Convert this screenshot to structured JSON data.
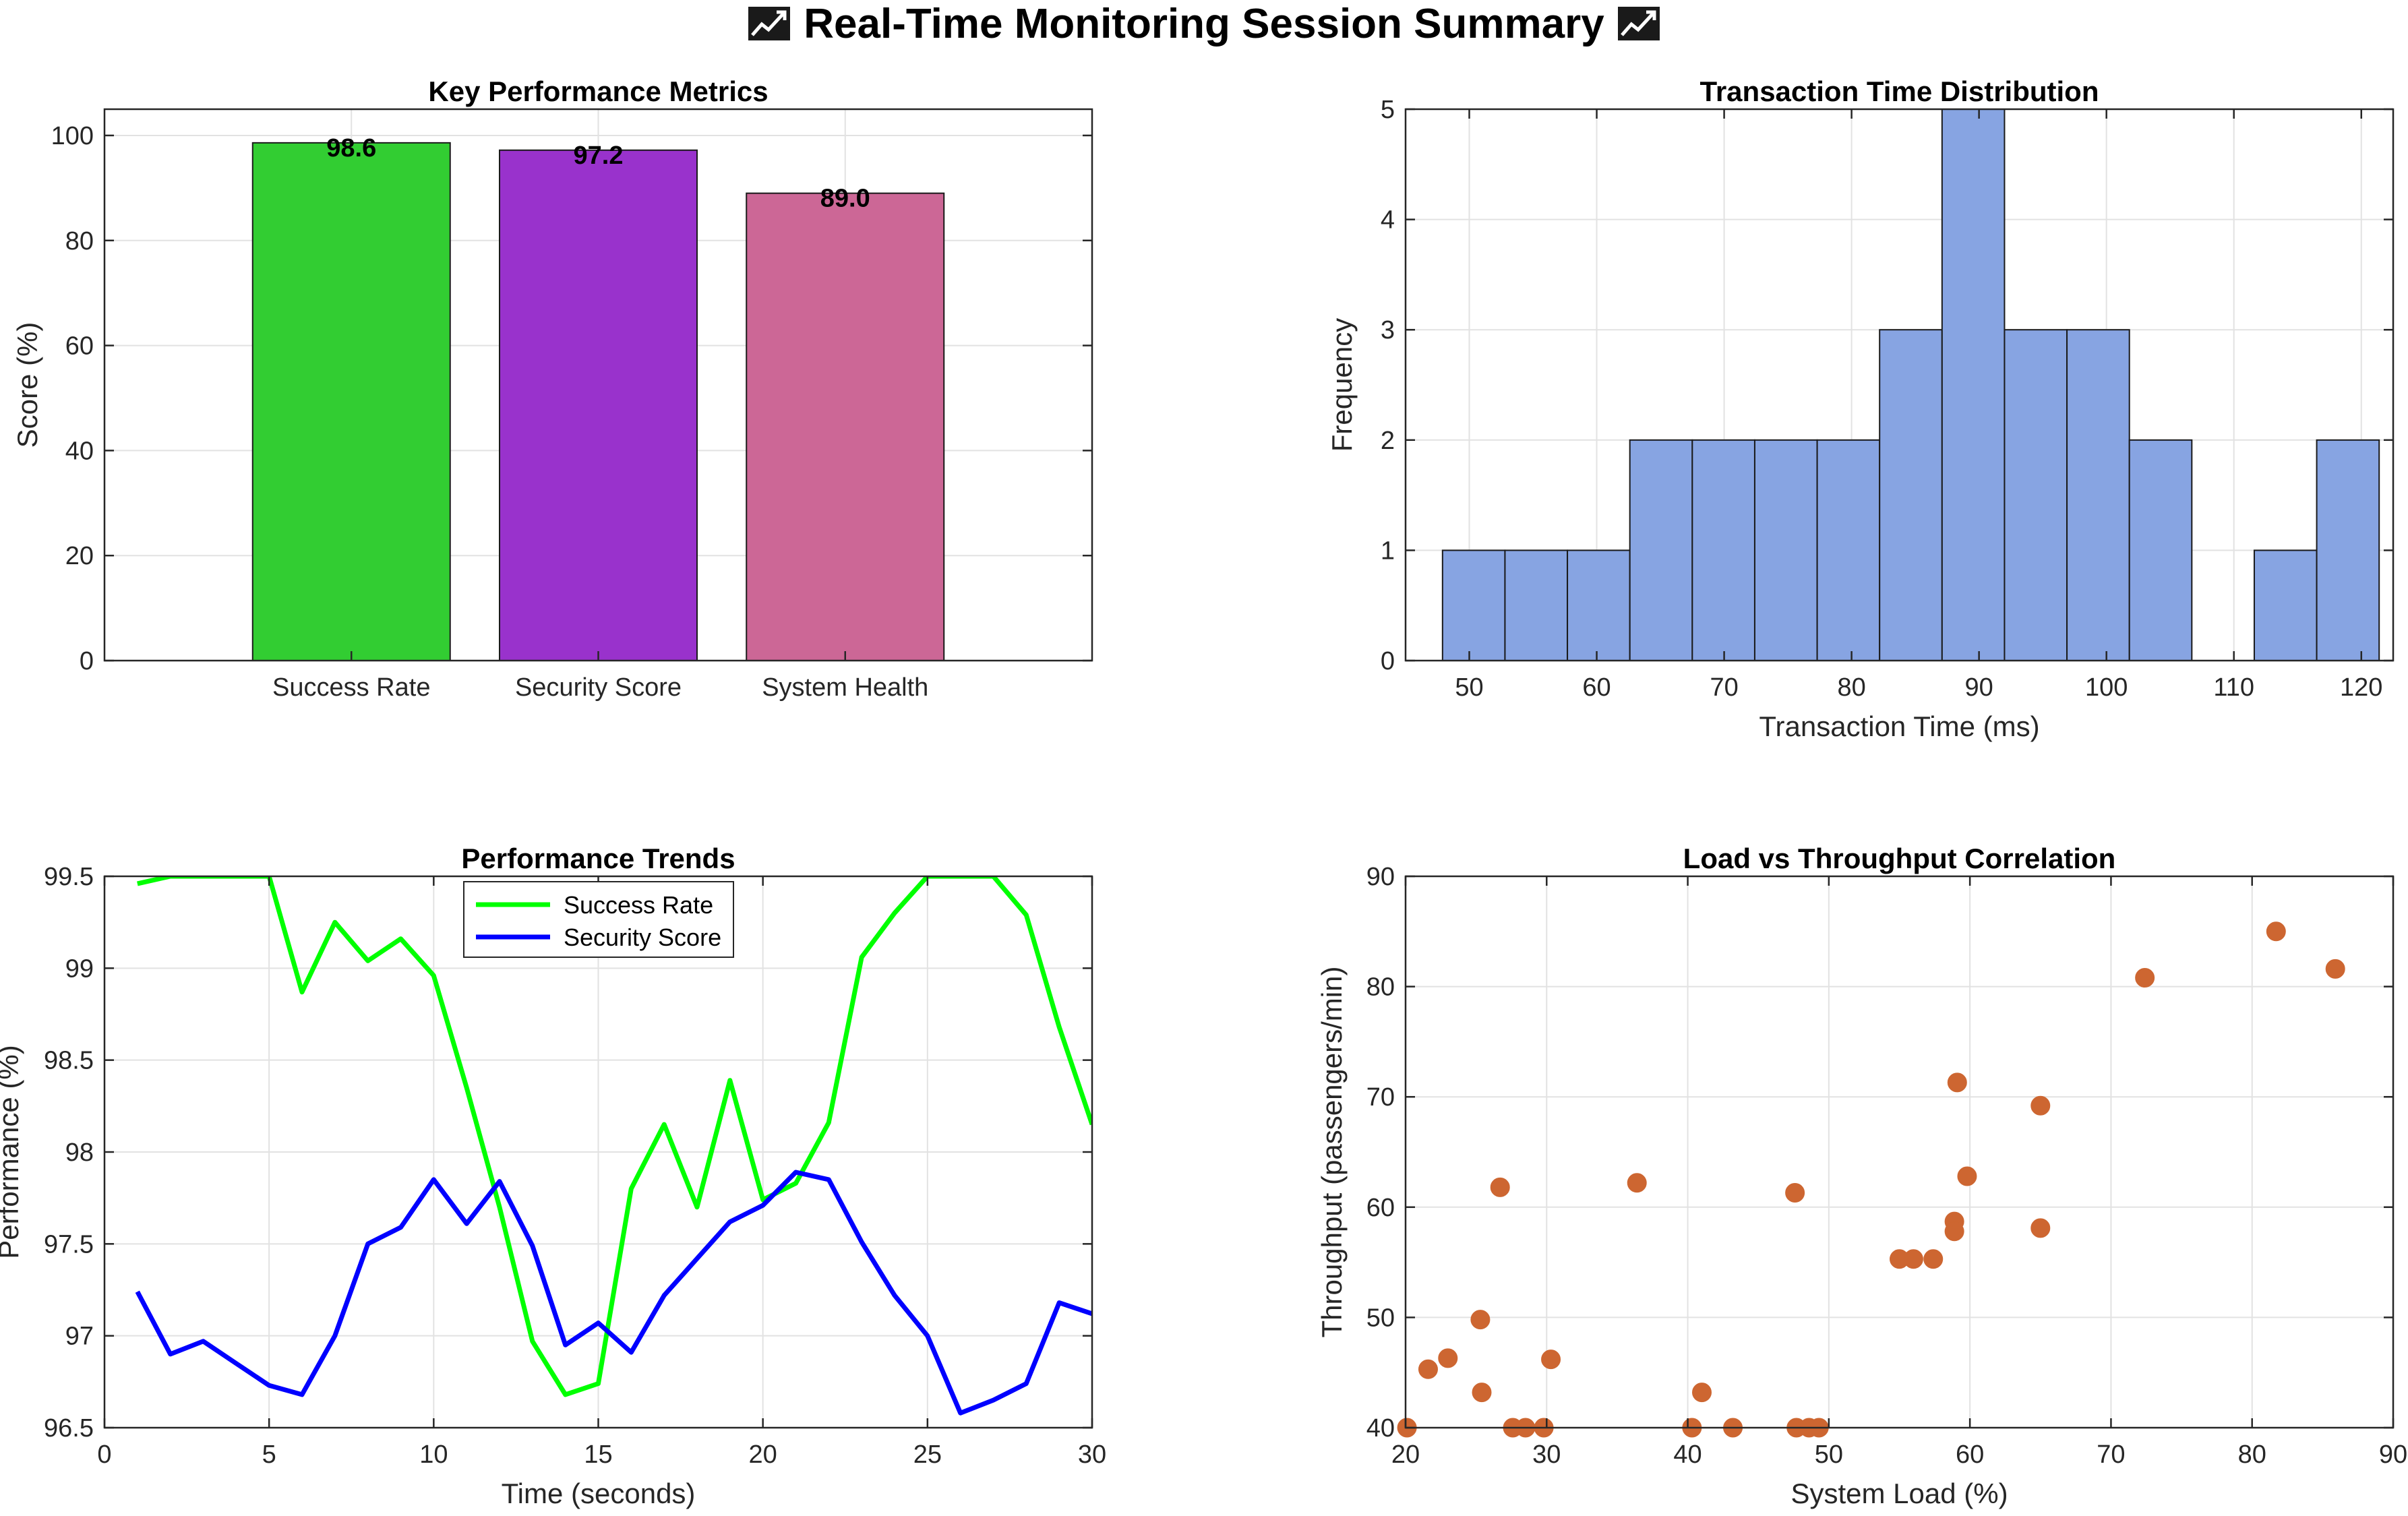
{
  "page": {
    "title": "Real-Time Monitoring Session Summary",
    "title_icon": "chart-increasing-icon"
  },
  "chart_data": [
    {
      "id": "kpm",
      "type": "bar",
      "title": "Key Performance Metrics",
      "xlabel": "",
      "ylabel": "Score (%)",
      "categories": [
        "Success Rate",
        "Security Score",
        "System Health"
      ],
      "values": [
        98.6,
        97.2,
        89.0
      ],
      "value_labels": [
        "98.6",
        "97.2",
        "89.0"
      ],
      "colors": [
        "#32cd32",
        "#9932cc",
        "#cc6796"
      ],
      "ylim": [
        0,
        105
      ],
      "yticks": [
        0,
        20,
        40,
        60,
        80,
        100
      ],
      "grid": true
    },
    {
      "id": "hist",
      "type": "bar",
      "title": "Transaction Time Distribution",
      "xlabel": "Transaction Time (ms)",
      "ylabel": "Frequency",
      "bin_edges": [
        47.9,
        52.8,
        57.7,
        62.6,
        67.5,
        72.4,
        77.3,
        82.2,
        87.1,
        92.0,
        96.9,
        101.8,
        106.7,
        111.6,
        116.5,
        121.4
      ],
      "counts": [
        1,
        1,
        1,
        2,
        2,
        2,
        2,
        3,
        5,
        3,
        3,
        2,
        0,
        1,
        2
      ],
      "color": "#87a4e2",
      "xlim": [
        45,
        122.5
      ],
      "ylim": [
        0,
        5
      ],
      "xticks": [
        50,
        60,
        70,
        80,
        90,
        100,
        110,
        120
      ],
      "yticks": [
        0,
        1,
        2,
        3,
        4,
        5
      ],
      "grid": true
    },
    {
      "id": "trends",
      "type": "line",
      "title": "Performance Trends",
      "xlabel": "Time (seconds)",
      "ylabel": "Performance (%)",
      "x": [
        1,
        2,
        3,
        4,
        5,
        6,
        7,
        8,
        9,
        10,
        11,
        12,
        13,
        14,
        15,
        16,
        17,
        18,
        19,
        20,
        21,
        22,
        23,
        24,
        25,
        26,
        27,
        28,
        29,
        30
      ],
      "series": [
        {
          "name": "Success Rate",
          "color": "#00ff00",
          "values": [
            99.46,
            99.5,
            99.5,
            99.5,
            99.5,
            98.87,
            99.25,
            99.04,
            99.16,
            98.96,
            98.35,
            97.7,
            96.97,
            96.68,
            96.74,
            97.8,
            98.15,
            97.7,
            98.39,
            97.74,
            97.83,
            98.16,
            99.06,
            99.3,
            99.5,
            99.5,
            99.5,
            99.29,
            98.68,
            98.15
          ]
        },
        {
          "name": "Security Score",
          "color": "#0000ff",
          "values": [
            97.24,
            96.9,
            96.97,
            96.85,
            96.73,
            96.68,
            97.0,
            97.5,
            97.59,
            97.85,
            97.61,
            97.84,
            97.49,
            96.95,
            97.07,
            96.91,
            97.22,
            97.42,
            97.62,
            97.71,
            97.89,
            97.85,
            97.51,
            97.22,
            97.0,
            96.58,
            96.65,
            96.74,
            97.18,
            97.12
          ]
        }
      ],
      "xlim": [
        0,
        30
      ],
      "ylim": [
        96.5,
        99.5
      ],
      "xticks": [
        0,
        5,
        10,
        15,
        20,
        25,
        30
      ],
      "yticks": [
        96.5,
        97,
        97.5,
        98,
        98.5,
        99,
        99.5
      ],
      "ytick_labels": [
        "96.5",
        "97",
        "97.5",
        "98",
        "98.5",
        "99",
        "99.5"
      ],
      "legend": "top-center",
      "grid": true
    },
    {
      "id": "scatter",
      "type": "scatter",
      "title": "Load vs Throughput Correlation",
      "xlabel": "System Load (%)",
      "ylabel": "Throughput (passengers/min)",
      "color": "#cd6631",
      "points": [
        [
          20.1,
          40
        ],
        [
          21.6,
          45.3
        ],
        [
          23,
          46.3
        ],
        [
          25.3,
          49.8
        ],
        [
          25.4,
          43.2
        ],
        [
          26.7,
          61.8
        ],
        [
          27.6,
          40
        ],
        [
          28.5,
          40
        ],
        [
          29.8,
          40
        ],
        [
          30.3,
          46.2
        ],
        [
          36.4,
          62.2
        ],
        [
          40.3,
          40
        ],
        [
          41,
          43.2
        ],
        [
          43.2,
          40
        ],
        [
          47.6,
          61.3
        ],
        [
          47.7,
          40
        ],
        [
          48.6,
          40
        ],
        [
          49.3,
          40
        ],
        [
          55,
          55.3
        ],
        [
          56,
          55.3
        ],
        [
          57.4,
          55.3
        ],
        [
          58.9,
          58.7
        ],
        [
          58.9,
          57.8
        ],
        [
          59.1,
          71.3
        ],
        [
          59.8,
          62.8
        ],
        [
          65,
          69.2
        ],
        [
          65,
          58.1
        ],
        [
          72.4,
          80.8
        ],
        [
          81.7,
          85
        ],
        [
          85.9,
          81.6
        ]
      ],
      "xlim": [
        20,
        90
      ],
      "ylim": [
        40,
        90
      ],
      "xticks": [
        20,
        30,
        40,
        50,
        60,
        70,
        80,
        90
      ],
      "yticks": [
        40,
        50,
        60,
        70,
        80,
        90
      ],
      "grid": true
    }
  ]
}
